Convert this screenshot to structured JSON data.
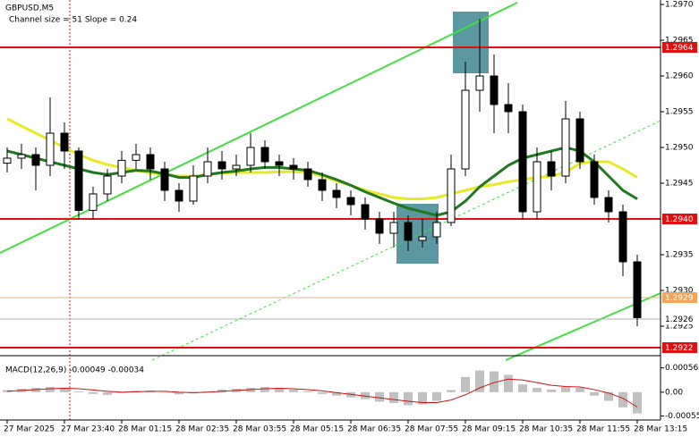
{
  "chart_data": {
    "type": "candlestick",
    "title": "GBPUSD,M5",
    "subtitle": "Channel size = 51 Slope = 0.24",
    "categories": [
      "27 Mar 2025",
      null,
      null,
      null,
      "27 Mar 23:40",
      null,
      null,
      null,
      "28 Mar 01:15",
      null,
      null,
      null,
      "28 Mar 02:35",
      null,
      null,
      null,
      "28 Mar 03:55",
      null,
      null,
      null,
      "28 Mar 05:15",
      null,
      null,
      null,
      "28 Mar 06:35",
      null,
      null,
      null,
      "28 Mar 07:55",
      null,
      null,
      null,
      "28 Mar 09:15",
      null,
      null,
      null,
      "28 Mar 10:35",
      null,
      null,
      null,
      "28 Mar 11:55",
      null,
      null,
      null,
      "28 Mar 13:15"
    ],
    "open": [
      1.29478,
      1.29485,
      1.2949,
      1.29475,
      1.2952,
      1.29495,
      1.29412,
      1.29435,
      1.2946,
      1.29482,
      1.2949,
      1.2947,
      1.2944,
      1.29425,
      1.2946,
      1.2948,
      1.2947,
      1.29475,
      1.295,
      1.2948,
      1.29475,
      1.2947,
      1.29455,
      1.2944,
      1.2943,
      1.2942,
      1.294,
      1.2938,
      1.29395,
      1.2937,
      1.29375,
      1.29395,
      1.2947,
      1.2958,
      1.296,
      1.2956,
      1.2955,
      1.2941,
      1.2948,
      1.2946,
      1.2954,
      1.2948,
      1.2943,
      1.2941,
      1.2934
    ],
    "high": [
      1.295,
      1.29505,
      1.295,
      1.2957,
      1.29535,
      1.295,
      1.29445,
      1.2947,
      1.29495,
      1.29505,
      1.295,
      1.2948,
      1.2945,
      1.29475,
      1.295,
      1.29495,
      1.2949,
      1.2952,
      1.2951,
      1.2949,
      1.29485,
      1.2948,
      1.29465,
      1.2945,
      1.2944,
      1.2943,
      1.2941,
      1.2941,
      1.29405,
      1.294,
      1.2941,
      1.2949,
      1.2962,
      1.2968,
      1.2963,
      1.2959,
      1.2956,
      1.295,
      1.29495,
      1.29565,
      1.2955,
      1.2949,
      1.2944,
      1.2942,
      1.2935
    ],
    "low": [
      1.29465,
      1.2947,
      1.2944,
      1.2946,
      1.2947,
      1.294,
      1.294,
      1.29425,
      1.2945,
      1.2947,
      1.29455,
      1.29425,
      1.2941,
      1.2942,
      1.2945,
      1.29455,
      1.2946,
      1.29465,
      1.2947,
      1.2946,
      1.29455,
      1.29445,
      1.29425,
      1.29415,
      1.29405,
      1.29385,
      1.29365,
      1.2936,
      1.29355,
      1.2936,
      1.29365,
      1.2939,
      1.2946,
      1.2955,
      1.2952,
      1.2952,
      1.294,
      1.294,
      1.2944,
      1.2945,
      1.2947,
      1.2942,
      1.29395,
      1.2932,
      1.2925
    ],
    "close": [
      1.29485,
      1.2949,
      1.29475,
      1.2952,
      1.29495,
      1.29412,
      1.29435,
      1.2946,
      1.29482,
      1.2949,
      1.2947,
      1.2944,
      1.29425,
      1.2946,
      1.2948,
      1.2947,
      1.29475,
      1.295,
      1.2948,
      1.29475,
      1.2947,
      1.29455,
      1.2944,
      1.2943,
      1.2942,
      1.294,
      1.2938,
      1.29395,
      1.2937,
      1.29375,
      1.29395,
      1.2947,
      1.2958,
      1.296,
      1.2956,
      1.2955,
      1.2941,
      1.2948,
      1.2946,
      1.2954,
      1.2948,
      1.2943,
      1.2941,
      1.2934,
      1.29262
    ],
    "up_color": "#ffffff",
    "down_color": "#000000",
    "overlays": [
      {
        "color": "#e8e82a",
        "values": [
          1.2954,
          1.2953,
          1.2952,
          1.2951,
          1.295,
          1.2949,
          1.29482,
          1.29476,
          1.29472,
          1.29468,
          1.29464,
          1.29462,
          1.2946,
          1.2946,
          1.29462,
          1.29464,
          1.29465,
          1.29465,
          1.29465,
          1.29466,
          1.29466,
          1.29465,
          1.2946,
          1.29453,
          1.29447,
          1.2944,
          1.29435,
          1.2943,
          1.29428,
          1.29428,
          1.2943,
          1.29435,
          1.2944,
          1.29445,
          1.29448,
          1.29452,
          1.29455,
          1.29458,
          1.2946,
          1.29465,
          1.29478,
          1.2948,
          1.2948,
          1.2947,
          1.29458
        ]
      },
      {
        "color": "#1f7a1f",
        "values": [
          1.29495,
          1.2949,
          1.29485,
          1.2948,
          1.29475,
          1.2947,
          1.29465,
          1.29462,
          1.29465,
          1.29468,
          1.29467,
          1.29463,
          1.29458,
          1.29458,
          1.29462,
          1.29465,
          1.29467,
          1.2947,
          1.29472,
          1.29472,
          1.2947,
          1.29468,
          1.29462,
          1.29455,
          1.29447,
          1.29438,
          1.2943,
          1.29422,
          1.29415,
          1.2941,
          1.29405,
          1.2941,
          1.29425,
          1.29445,
          1.2946,
          1.29475,
          1.29485,
          1.2949,
          1.29495,
          1.295,
          1.29495,
          1.2948,
          1.2946,
          1.2944,
          1.29428
        ]
      }
    ],
    "ylim": [
      1.2921,
      1.297
    ],
    "yticks": [
      {
        "value": 1.297,
        "label": "1.2970"
      },
      1.2965,
      {
        "value": 1.296,
        "label": "1.2960"
      },
      1.2955,
      {
        "value": 1.295,
        "label": "1.2950"
      },
      1.2945,
      1.2935,
      {
        "value": 1.293,
        "label": "1.2930"
      },
      1.2925
    ],
    "levels": [
      {
        "price": 1.2964,
        "color": "#e01010",
        "label_color": "#e01010",
        "text_color": "#ffffff"
      },
      {
        "price": {
          "value": 1.294,
          "label": "1.2940"
        },
        "color": "#e01010",
        "label_color": "#e01010",
        "text_color": "#ffffff"
      },
      {
        "price": 1.2929,
        "color": "#dcb48c",
        "label_color": "#f2a35c",
        "text_color": "#ffffff"
      },
      {
        "price": 1.2926,
        "color": "#b0b0b0",
        "label_color": "#ffffff",
        "text_color": "#000000"
      },
      {
        "price": 1.2922,
        "color": "#e01010",
        "label_color": "#e01010",
        "text_color": "#ffffff"
      }
    ],
    "macd": {
      "label": "MACD(12,26,9) -0.00049 -0.00034",
      "histogram": [
        5e-05,
        8e-05,
        0.0001,
        0.00012,
        0.0001,
        2e-05,
        -4e-05,
        -6e-05,
        -2e-05,
        3e-05,
        4e-05,
        0,
        -5e-05,
        -3e-05,
        2e-05,
        6e-05,
        8e-05,
        0.0001,
        0.00012,
        0.0001,
        6e-05,
        2e-05,
        -4e-05,
        -8e-05,
        -0.00012,
        -0.00016,
        -0.00022,
        -0.00025,
        -0.0003,
        -0.00028,
        -0.0002,
        5e-05,
        0.00035,
        0.0005,
        0.00048,
        0.0004,
        0.00018,
        0.0001,
        6e-05,
        0.00012,
        0.0001,
        -8e-05,
        -0.0002,
        -0.00035,
        -0.00049
      ],
      "signal": [
        2e-05,
        4e-05,
        6e-05,
        8e-05,
        9e-05,
        8e-05,
        5e-05,
        2e-05,
        0,
        1e-05,
        2e-05,
        2e-05,
        0,
        -1e-05,
        0,
        2e-05,
        4e-05,
        6e-05,
        8e-05,
        9e-05,
        8e-05,
        6e-05,
        3e-05,
        -1e-05,
        -5e-05,
        -9e-05,
        -0.00013,
        -0.00017,
        -0.00021,
        -0.00024,
        -0.00024,
        -0.00018,
        -6e-05,
        0.0001,
        0.00022,
        0.0003,
        0.00028,
        0.00022,
        0.00016,
        0.00013,
        0.00012,
        6e-05,
        -2e-05,
        -0.00014,
        -0.00034
      ],
      "histogram_color": "#c0c0c0",
      "signal_color": "#d01010",
      "ylim": [
        -0.0006,
        0.0008
      ],
      "yticks": [
        0.00056,
        {
          "value": 0,
          "label": "0.00"
        },
        -0.00055
      ]
    }
  }
}
